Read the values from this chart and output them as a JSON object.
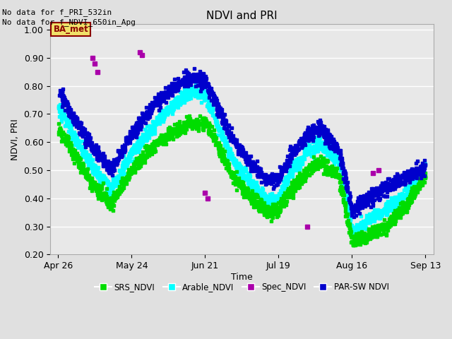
{
  "title": "NDVI and PRI",
  "ylabel": "NDVI, PRI",
  "xlabel": "Time",
  "ylim": [
    0.2,
    1.02
  ],
  "background_color": "#e0e0e0",
  "plot_bg_color": "#e8e8e8",
  "annotation1": "No data for f_PRI_532in",
  "annotation2": "No data for f_NDVI_650in_Apg",
  "ba_met_label": "BA_met",
  "legend_entries": [
    "SRS_NDVI",
    "Arable_NDVI",
    "Spec_NDVI",
    "PAR-SW NDVI"
  ],
  "colors": {
    "SRS_NDVI": "#00dd00",
    "Arable_NDVI": "#00ffff",
    "Spec_NDVI": "#aa00aa",
    "PAR_SW_NDVI": "#0000cc"
  },
  "x_ticks_labels": [
    "Apr 26",
    "May 24",
    "Jun 21",
    "Jul 19",
    "Aug 16",
    "Sep 13"
  ],
  "x_ticks_days": [
    0,
    28,
    56,
    84,
    112,
    140
  ],
  "gridlines_y": [
    0.2,
    0.3,
    0.4,
    0.5,
    0.6,
    0.7,
    0.8,
    0.9,
    1.0
  ],
  "srs_key_t": [
    0,
    6,
    14,
    20,
    28,
    38,
    50,
    56,
    60,
    67,
    74,
    80,
    84,
    88,
    95,
    100,
    107,
    112,
    118,
    125,
    133,
    140
  ],
  "srs_key_v": [
    0.65,
    0.56,
    0.44,
    0.38,
    0.5,
    0.6,
    0.67,
    0.67,
    0.6,
    0.47,
    0.4,
    0.35,
    0.36,
    0.42,
    0.5,
    0.53,
    0.48,
    0.24,
    0.27,
    0.3,
    0.38,
    0.48
  ],
  "ara_key_t": [
    0,
    6,
    14,
    20,
    28,
    38,
    50,
    56,
    60,
    67,
    74,
    80,
    84,
    88,
    95,
    100,
    107,
    112,
    118,
    125,
    133,
    140
  ],
  "ara_key_v": [
    0.73,
    0.62,
    0.5,
    0.43,
    0.56,
    0.68,
    0.78,
    0.77,
    0.67,
    0.53,
    0.45,
    0.39,
    0.4,
    0.48,
    0.57,
    0.59,
    0.53,
    0.28,
    0.32,
    0.36,
    0.42,
    0.5
  ],
  "par_key_t": [
    0,
    6,
    14,
    20,
    28,
    38,
    50,
    56,
    60,
    67,
    74,
    80,
    84,
    88,
    95,
    100,
    107,
    112,
    118,
    125,
    133,
    140
  ],
  "par_key_v": [
    0.79,
    0.68,
    0.57,
    0.5,
    0.63,
    0.75,
    0.83,
    0.82,
    0.74,
    0.6,
    0.52,
    0.46,
    0.47,
    0.54,
    0.63,
    0.65,
    0.57,
    0.36,
    0.4,
    0.44,
    0.48,
    0.51
  ],
  "spec_t": [
    13,
    14,
    15,
    31,
    32,
    56,
    57,
    95,
    120,
    122
  ],
  "spec_v": [
    0.9,
    0.88,
    0.85,
    0.92,
    0.91,
    0.42,
    0.4,
    0.3,
    0.49,
    0.5
  ],
  "noise_srs": 0.012,
  "noise_ara": 0.012,
  "noise_par": 0.012,
  "density": 12,
  "marker_size": 2.8
}
